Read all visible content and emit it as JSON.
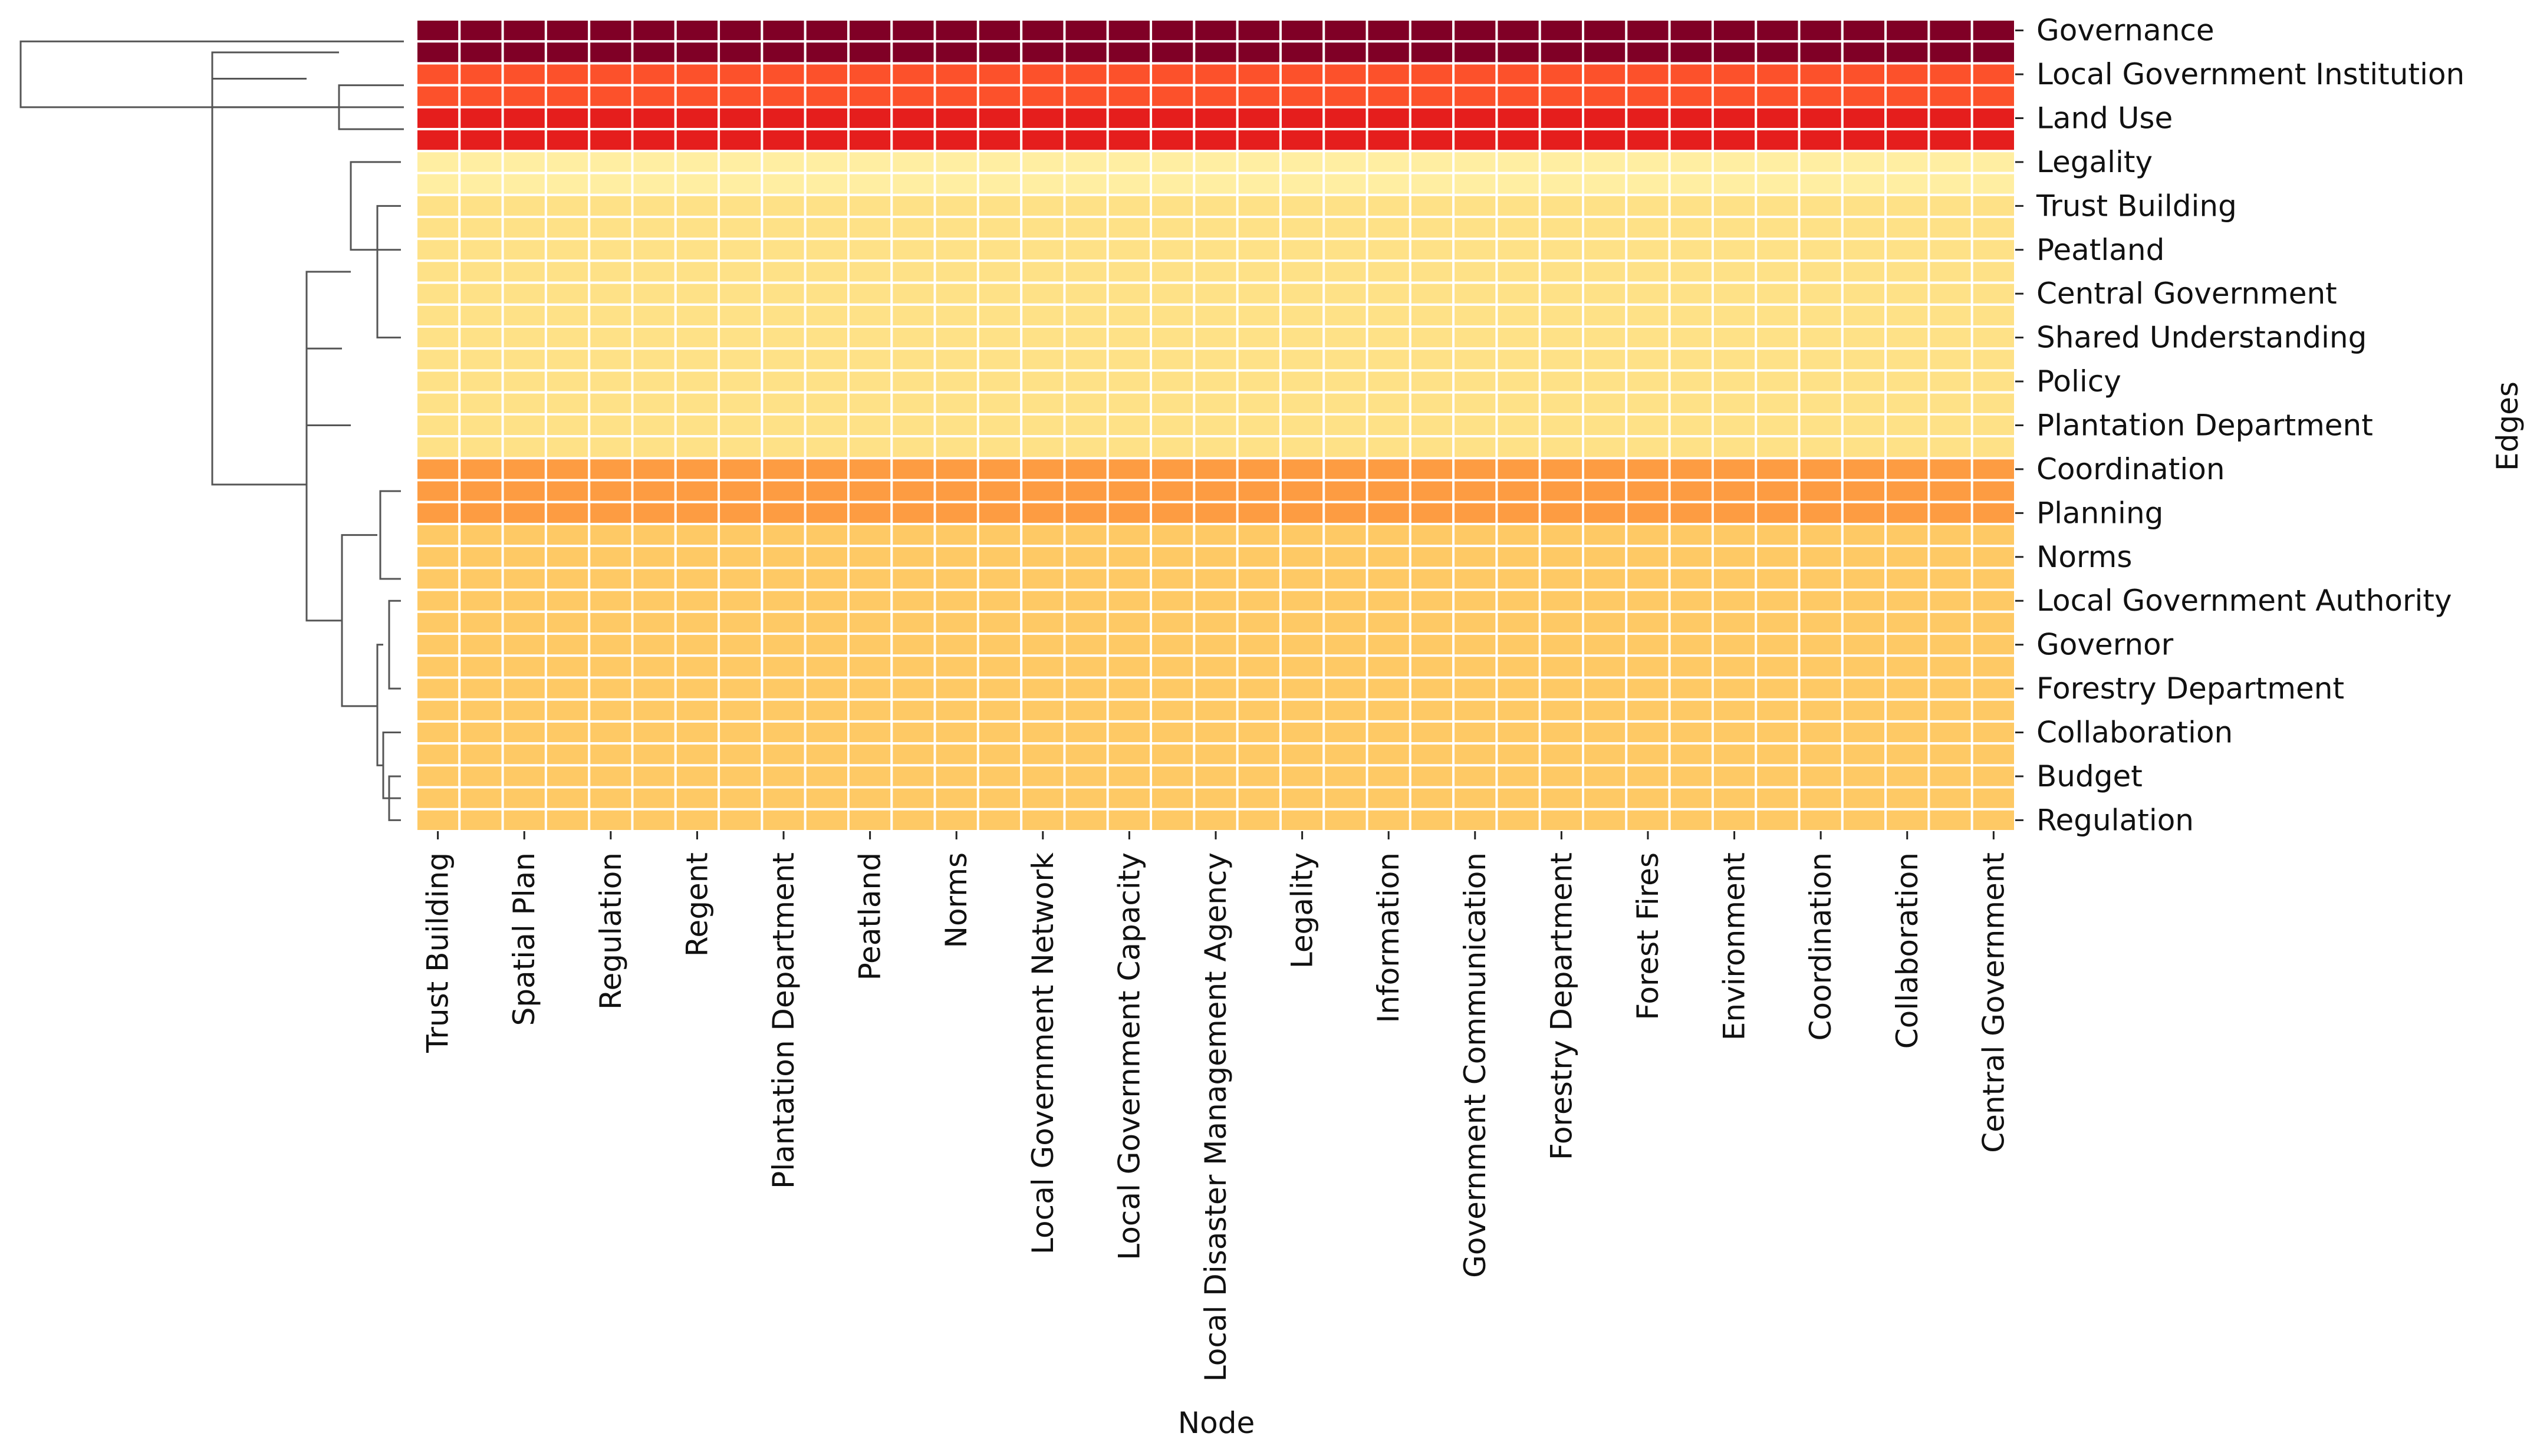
{
  "chart_data": {
    "type": "heatmap",
    "title": "",
    "xlabel": "Node",
    "ylabel": "Edges",
    "x_tick_labels": [
      "Trust Building",
      "Spatial Plan",
      "Regulation",
      "Regent",
      "Plantation Department",
      "Peatland",
      "Norms",
      "Local Government Network",
      "Local Government Capacity",
      "Local Disaster Management Agency",
      "Legality",
      "Information",
      "Government Communication",
      "Forestry Department",
      "Forest Fires",
      "Environment",
      "Coordination",
      "Collaboration",
      "Central Government"
    ],
    "y_tick_labels": [
      "Governance",
      "Local Government Institution",
      "Land Use",
      "Legality",
      "Trust Building",
      "Peatland",
      "Central Government",
      "Shared Understanding",
      "Policy",
      "Plantation Department",
      "Coordination",
      "Planning",
      "Norms",
      "Local Government Authority",
      "Governor",
      "Forestry Department",
      "Collaboration",
      "Budget",
      "Regulation"
    ],
    "n_rows": 37,
    "n_cols": 37,
    "row_shades": [
      1.0,
      1.0,
      0.62,
      0.62,
      0.74,
      0.74,
      0.12,
      0.12,
      0.2,
      0.2,
      0.2,
      0.2,
      0.2,
      0.2,
      0.2,
      0.2,
      0.2,
      0.2,
      0.2,
      0.2,
      0.45,
      0.45,
      0.45,
      0.3,
      0.3,
      0.3,
      0.3,
      0.3,
      0.3,
      0.3,
      0.3,
      0.3,
      0.3,
      0.3,
      0.3,
      0.3,
      0.3
    ],
    "colormap": "YlOrRd",
    "dendrogram": "rows"
  }
}
